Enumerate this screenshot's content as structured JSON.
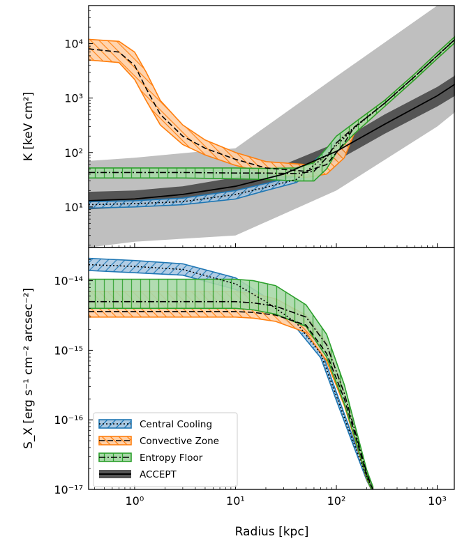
{
  "chart_data": [
    {
      "type": "line",
      "panel": "top",
      "xlabel": "",
      "ylabel": "K [keV cm²]",
      "xscale": "log",
      "yscale": "log",
      "xlim": [
        0.35,
        1500
      ],
      "ylim": [
        1.8,
        50000
      ],
      "yticks": [
        {
          "v": 10,
          "label": "10¹"
        },
        {
          "v": 100,
          "label": "10²"
        },
        {
          "v": 1000,
          "label": "10³"
        },
        {
          "v": 10000,
          "label": "10⁴"
        }
      ],
      "bands": [
        {
          "name": "ACCEPT range",
          "color": "#bfbfbf",
          "x": [
            0.35,
            1,
            10,
            100,
            1000,
            1500
          ],
          "lo": [
            1.8,
            2.3,
            3.0,
            20,
            300,
            550
          ],
          "hi": [
            70,
            80,
            120,
            2500,
            50000,
            60000
          ]
        },
        {
          "name": "ACCEPT",
          "color": "#555555",
          "x": [
            0.35,
            1,
            3,
            10,
            30,
            100,
            300,
            1000,
            1500
          ],
          "lo": [
            9,
            10,
            12,
            15,
            27,
            70,
            220,
            700,
            1100
          ],
          "hi": [
            19,
            20,
            24,
            35,
            60,
            150,
            500,
            1600,
            2600
          ]
        }
      ],
      "series": [
        {
          "name": "Central Cooling",
          "color": "#1f77b4",
          "dash": "dotted",
          "x": [
            0.35,
            1,
            3,
            10,
            20,
            40,
            80,
            150,
            300,
            600,
            1000,
            1500
          ],
          "y": [
            11,
            11.5,
            12.5,
            17,
            23,
            32,
            90,
            280,
            800,
            2500,
            6000,
            12000
          ],
          "lo": [
            9.5,
            10,
            11,
            14,
            20,
            28,
            70,
            230,
            700,
            2200,
            5300,
            10500
          ],
          "hi": [
            12.5,
            13,
            14.5,
            20,
            27,
            37,
            110,
            330,
            900,
            2800,
            6800,
            13500
          ]
        },
        {
          "name": "Convective Zone",
          "color": "#ff7f0e",
          "dash": "dashed",
          "x": [
            0.35,
            0.7,
            1,
            1.3,
            1.8,
            3,
            5,
            10,
            20,
            50,
            80,
            120,
            150,
            300,
            600,
            1000,
            1500
          ],
          "y": [
            8000,
            7000,
            4000,
            1500,
            500,
            200,
            120,
            75,
            52,
            45,
            60,
            150,
            290,
            800,
            2500,
            6000,
            12000
          ],
          "lo": [
            5000,
            4500,
            2200,
            900,
            320,
            140,
            90,
            58,
            42,
            35,
            40,
            80,
            220,
            700,
            2200,
            5300,
            10500
          ],
          "hi": [
            12000,
            11000,
            7000,
            3000,
            900,
            320,
            170,
            100,
            68,
            60,
            80,
            220,
            350,
            900,
            2800,
            6800,
            13500
          ]
        },
        {
          "name": "Entropy Floor",
          "color": "#2ca02c",
          "dash": "dashdot",
          "x": [
            0.35,
            1,
            3,
            10,
            20,
            40,
            60,
            80,
            100,
            150,
            300,
            600,
            1000,
            1500
          ],
          "y": [
            43,
            43,
            43,
            42,
            42,
            41,
            45,
            80,
            150,
            290,
            800,
            2500,
            6000,
            12000
          ],
          "lo": [
            34,
            34,
            34,
            33,
            32,
            30,
            30,
            50,
            100,
            220,
            700,
            2200,
            5300,
            10500
          ],
          "hi": [
            52,
            52,
            52,
            52,
            51,
            52,
            65,
            120,
            200,
            350,
            900,
            2800,
            6800,
            13500
          ]
        },
        {
          "name": "ACCEPT",
          "color": "#000000",
          "dash": "solid",
          "x": [
            0.35,
            1,
            3,
            10,
            30,
            100,
            300,
            1000,
            1500
          ],
          "y": [
            13,
            14,
            17,
            24,
            40,
            105,
            330,
            1100,
            1800
          ]
        }
      ]
    },
    {
      "type": "line",
      "panel": "bottom",
      "xlabel": "Radius [kpc]",
      "ylabel": "S_X [erg s⁻¹ cm⁻² arcsec⁻²]",
      "xscale": "log",
      "yscale": "log",
      "xlim": [
        0.35,
        1500
      ],
      "ylim": [
        1e-17,
        3e-14
      ],
      "xticks": [
        {
          "v": 1,
          "label": "10⁰"
        },
        {
          "v": 10,
          "label": "10¹"
        },
        {
          "v": 100,
          "label": "10²"
        },
        {
          "v": 1000,
          "label": "10³"
        }
      ],
      "yticks": [
        {
          "v": 1e-17,
          "label": "10⁻¹⁷"
        },
        {
          "v": 1e-16,
          "label": "10⁻¹⁶"
        },
        {
          "v": 1e-15,
          "label": "10⁻¹⁵"
        },
        {
          "v": 1e-14,
          "label": "10⁻¹⁴"
        }
      ],
      "series": [
        {
          "name": "Central Cooling",
          "color": "#1f77b4",
          "dash": "dotted",
          "x": [
            0.35,
            1,
            3,
            10,
            20,
            40,
            70,
            100,
            150,
            200,
            230
          ],
          "y": [
            1.7e-14,
            1.6e-14,
            1.45e-14,
            9e-15,
            5e-15,
            2.5e-15,
            9e-16,
            2.2e-16,
            4.5e-17,
            1.5e-17,
            1e-17
          ],
          "lo": [
            1.4e-14,
            1.3e-14,
            1.2e-14,
            7.5e-15,
            4.3e-15,
            2.1e-15,
            7.8e-16,
            1.9e-16,
            4e-17,
            1.35e-17,
            9e-18
          ],
          "hi": [
            2.1e-14,
            1.95e-14,
            1.75e-14,
            1.1e-14,
            5.8e-15,
            2.9e-15,
            1.05e-15,
            2.5e-16,
            5e-17,
            1.65e-17,
            1.1e-17
          ]
        },
        {
          "name": "Convective Zone",
          "color": "#ff7f0e",
          "dash": "dashed",
          "x": [
            0.35,
            1,
            3,
            10,
            15,
            25,
            50,
            80,
            120,
            160,
            200,
            230
          ],
          "y": [
            3.6e-15,
            3.6e-15,
            3.6e-15,
            3.6e-15,
            3.5e-15,
            3.2e-15,
            2.3e-15,
            9e-16,
            2e-16,
            5e-17,
            1.6e-17,
            1e-17
          ],
          "lo": [
            3e-15,
            3e-15,
            3e-15,
            3e-15,
            2.9e-15,
            2.6e-15,
            1.8e-15,
            7e-16,
            1.6e-16,
            4.2e-17,
            1.4e-17,
            9e-18
          ],
          "hi": [
            7e-15,
            7e-15,
            7e-15,
            7e-15,
            6.5e-15,
            5.5e-15,
            3.2e-15,
            1.3e-15,
            2.5e-16,
            5.8e-17,
            1.8e-17,
            1.1e-17
          ]
        },
        {
          "name": "Entropy Floor",
          "color": "#2ca02c",
          "dash": "dashdot",
          "x": [
            0.35,
            1,
            3,
            10,
            15,
            25,
            50,
            80,
            120,
            160,
            200,
            230
          ],
          "y": [
            5e-15,
            5e-15,
            5e-15,
            5e-15,
            4.8e-15,
            4.3e-15,
            3e-15,
            1.2e-15,
            2.4e-16,
            5.5e-17,
            1.7e-17,
            1e-17
          ],
          "lo": [
            4e-15,
            4e-15,
            4e-15,
            4e-15,
            3.8e-15,
            3.3e-15,
            2.2e-15,
            8e-16,
            1.7e-16,
            4.4e-17,
            1.45e-17,
            9e-18
          ],
          "hi": [
            1.05e-14,
            1.05e-14,
            1.05e-14,
            1.05e-14,
            1e-14,
            8.5e-15,
            4.5e-15,
            1.7e-15,
            3.2e-16,
            6.5e-17,
            1.9e-17,
            1.1e-17
          ]
        }
      ]
    }
  ],
  "legend": {
    "placement": "lower-left",
    "entries": [
      {
        "label": "Central Cooling",
        "color": "#1f77b4",
        "dash": "dotted"
      },
      {
        "label": "Convective Zone",
        "color": "#ff7f0e",
        "dash": "dashed"
      },
      {
        "label": "Entropy Floor",
        "color": "#2ca02c",
        "dash": "dashdot"
      },
      {
        "label": "ACCEPT",
        "color": "#000000",
        "dash": "solid"
      }
    ]
  }
}
